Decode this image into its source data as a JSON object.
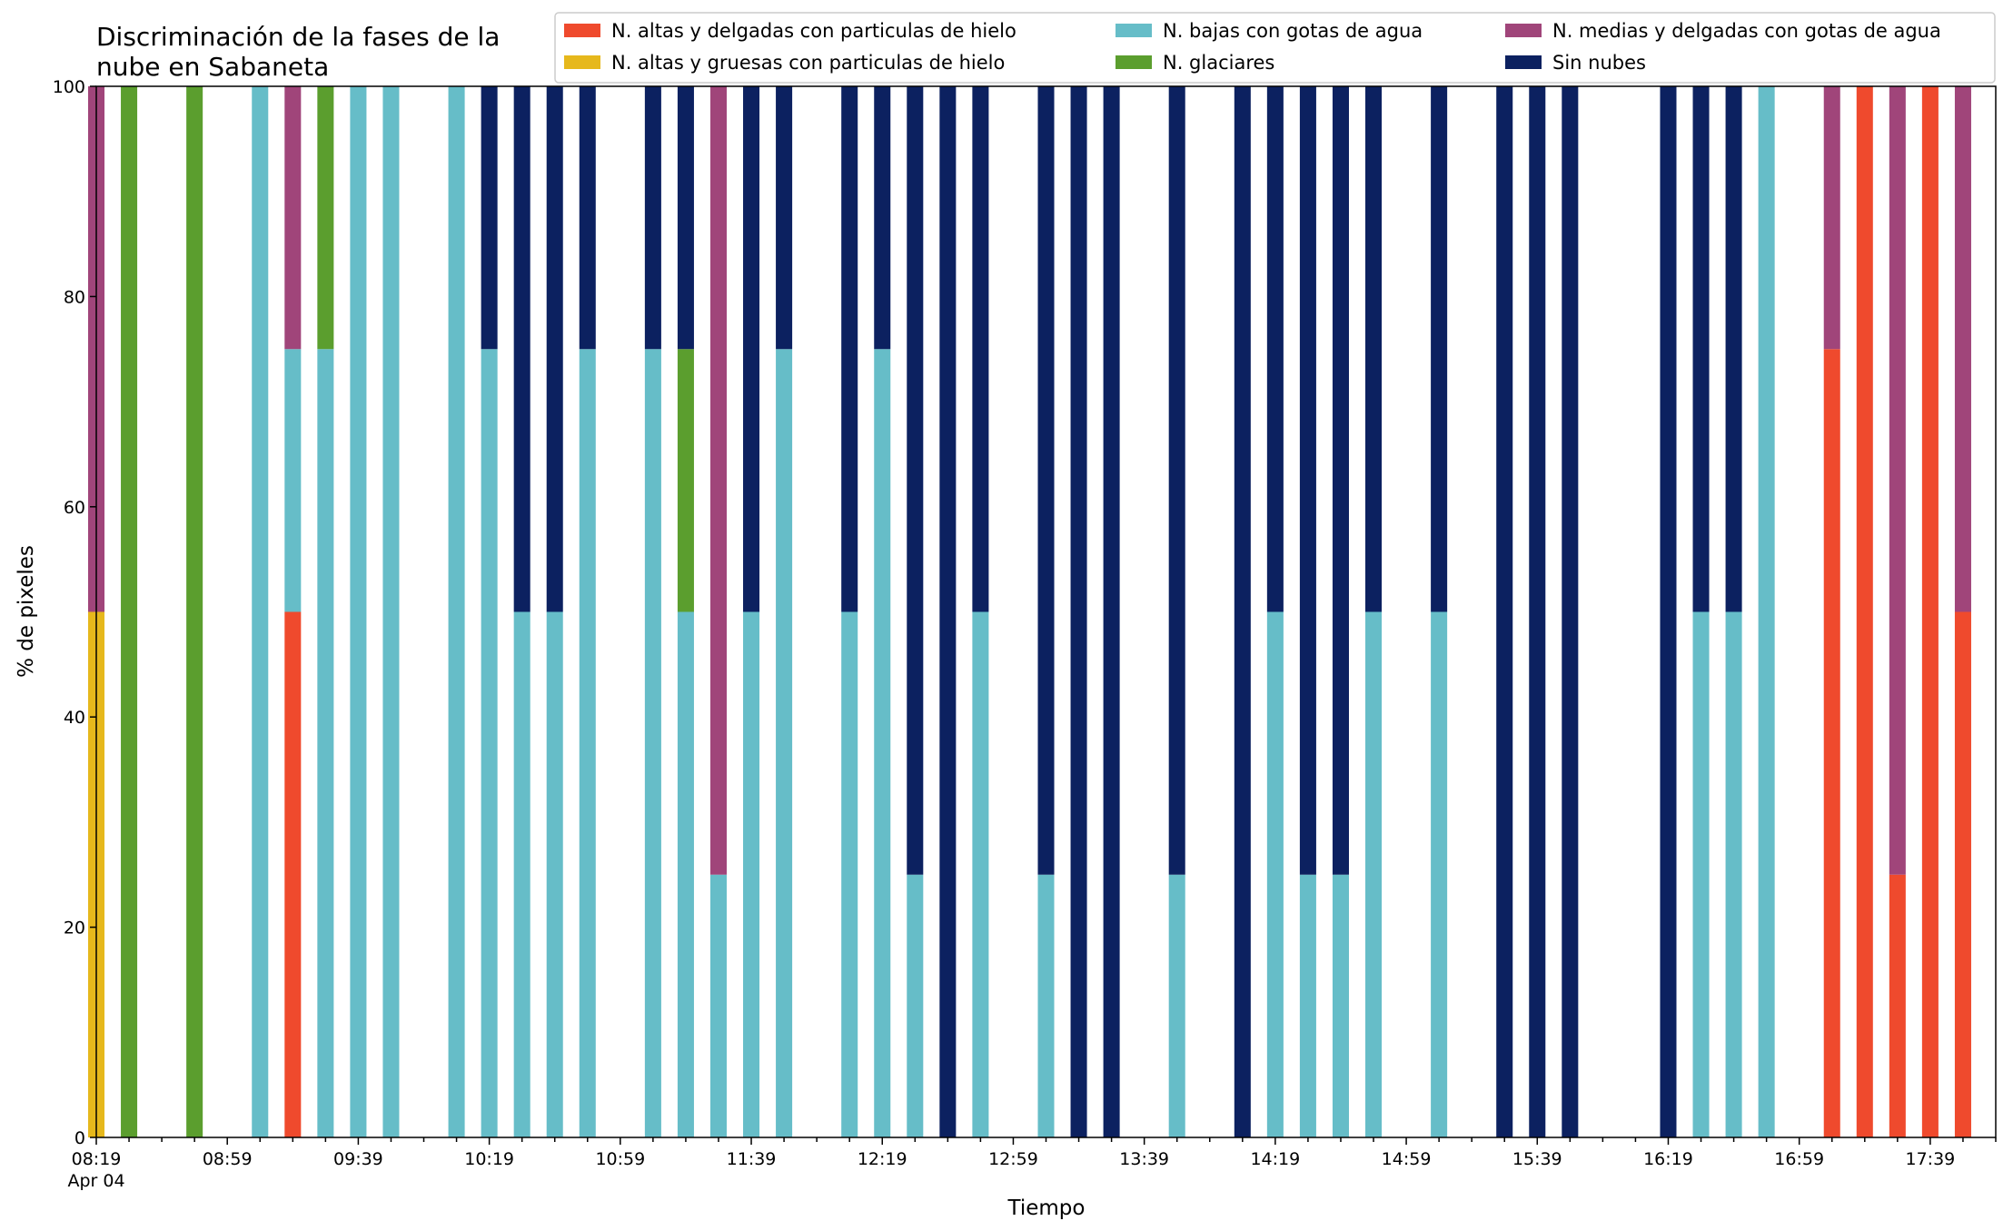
{
  "chart_data": {
    "type": "bar",
    "stacked": true,
    "title_lines": [
      "Discriminación de la fases de la",
      "nube en Sabaneta"
    ],
    "xlabel": "Tiempo",
    "ylabel": "% de pixeles",
    "ylim": [
      0,
      100
    ],
    "yticks": [
      0,
      20,
      40,
      60,
      80,
      100
    ],
    "x_tick_labels": [
      "08:19",
      "08:59",
      "09:39",
      "10:19",
      "10:59",
      "11:39",
      "12:19",
      "12:59",
      "13:39",
      "14:19",
      "14:59",
      "15:39",
      "16:19",
      "16:59",
      "17:39"
    ],
    "x_date_label": "Apr 04",
    "x_unit_minutes": 10,
    "minor_tick_every_minutes": 10,
    "major_tick_every_minutes": 40,
    "axis_start_minute": 499,
    "axis_end_minute": 1079,
    "legend_location": "top-right",
    "legend_columns": 3,
    "series": [
      {
        "name": "N. altas y delgadas con particulas de hielo",
        "color": "#ef4a2d"
      },
      {
        "name": "N. altas y gruesas con particulas de hielo",
        "color": "#e6b81c"
      },
      {
        "name": "N. bajas con gotas de agua",
        "color": "#66bdc8"
      },
      {
        "name": "N. glaciares",
        "color": "#5b9e2e"
      },
      {
        "name": "N. medias y delgadas con gotas de agua",
        "color": "#a0457a"
      },
      {
        "name": "Sin nubes",
        "color": "#0c2160"
      }
    ],
    "bars": [
      {
        "time": "08:19",
        "values": [
          0,
          50,
          0,
          0,
          50,
          0
        ]
      },
      {
        "time": "08:29",
        "values": [
          0,
          0,
          0,
          100,
          0,
          0
        ]
      },
      {
        "time": "08:49",
        "values": [
          0,
          0,
          0,
          100,
          0,
          0
        ]
      },
      {
        "time": "09:09",
        "values": [
          0,
          0,
          100,
          0,
          0,
          0
        ]
      },
      {
        "time": "09:19",
        "values": [
          50,
          0,
          25,
          0,
          25,
          0
        ]
      },
      {
        "time": "09:29",
        "values": [
          0,
          0,
          75,
          25,
          0,
          0
        ]
      },
      {
        "time": "09:39",
        "values": [
          0,
          0,
          100,
          0,
          0,
          0
        ]
      },
      {
        "time": "09:49",
        "values": [
          0,
          0,
          100,
          0,
          0,
          0
        ]
      },
      {
        "time": "10:09",
        "values": [
          0,
          0,
          100,
          0,
          0,
          0
        ]
      },
      {
        "time": "10:19",
        "values": [
          0,
          0,
          75,
          0,
          0,
          25
        ]
      },
      {
        "time": "10:29",
        "values": [
          0,
          0,
          50,
          0,
          0,
          50
        ]
      },
      {
        "time": "10:39",
        "values": [
          0,
          0,
          50,
          0,
          0,
          50
        ]
      },
      {
        "time": "10:49",
        "values": [
          0,
          0,
          75,
          0,
          0,
          25
        ]
      },
      {
        "time": "11:09",
        "values": [
          0,
          0,
          75,
          0,
          0,
          25
        ]
      },
      {
        "time": "11:19",
        "values": [
          0,
          0,
          50,
          25,
          0,
          25
        ]
      },
      {
        "time": "11:29",
        "values": [
          0,
          0,
          25,
          0,
          75,
          0
        ]
      },
      {
        "time": "11:39",
        "values": [
          0,
          0,
          50,
          0,
          0,
          50
        ]
      },
      {
        "time": "11:49",
        "values": [
          0,
          0,
          75,
          0,
          0,
          25
        ]
      },
      {
        "time": "12:09",
        "values": [
          0,
          0,
          50,
          0,
          0,
          50
        ]
      },
      {
        "time": "12:19",
        "values": [
          0,
          0,
          75,
          0,
          0,
          25
        ]
      },
      {
        "time": "12:29",
        "values": [
          0,
          0,
          25,
          0,
          0,
          75
        ]
      },
      {
        "time": "12:39",
        "values": [
          0,
          0,
          0,
          0,
          0,
          100
        ]
      },
      {
        "time": "12:49",
        "values": [
          0,
          0,
          50,
          0,
          0,
          50
        ]
      },
      {
        "time": "13:09",
        "values": [
          0,
          0,
          25,
          0,
          0,
          75
        ]
      },
      {
        "time": "13:19",
        "values": [
          0,
          0,
          0,
          0,
          0,
          100
        ]
      },
      {
        "time": "13:29",
        "values": [
          0,
          0,
          0,
          0,
          0,
          100
        ]
      },
      {
        "time": "13:49",
        "values": [
          0,
          0,
          25,
          0,
          0,
          75
        ]
      },
      {
        "time": "14:09",
        "values": [
          0,
          0,
          0,
          0,
          0,
          100
        ]
      },
      {
        "time": "14:19",
        "values": [
          0,
          0,
          50,
          0,
          0,
          50
        ]
      },
      {
        "time": "14:29",
        "values": [
          0,
          0,
          25,
          0,
          0,
          75
        ]
      },
      {
        "time": "14:39",
        "values": [
          0,
          0,
          25,
          0,
          0,
          75
        ]
      },
      {
        "time": "14:49",
        "values": [
          0,
          0,
          50,
          0,
          0,
          50
        ]
      },
      {
        "time": "15:09",
        "values": [
          0,
          0,
          50,
          0,
          0,
          50
        ]
      },
      {
        "time": "15:29",
        "values": [
          0,
          0,
          0,
          0,
          0,
          100
        ]
      },
      {
        "time": "15:39",
        "values": [
          0,
          0,
          0,
          0,
          0,
          100
        ]
      },
      {
        "time": "15:49",
        "values": [
          0,
          0,
          0,
          0,
          0,
          100
        ]
      },
      {
        "time": "16:19",
        "values": [
          0,
          0,
          0,
          0,
          0,
          100
        ]
      },
      {
        "time": "16:29",
        "values": [
          0,
          0,
          50,
          0,
          0,
          50
        ]
      },
      {
        "time": "16:39",
        "values": [
          0,
          0,
          50,
          0,
          0,
          50
        ]
      },
      {
        "time": "16:49",
        "values": [
          0,
          0,
          100,
          0,
          0,
          0
        ]
      },
      {
        "time": "17:09",
        "values": [
          75,
          0,
          0,
          0,
          25,
          0
        ]
      },
      {
        "time": "17:19",
        "values": [
          100,
          0,
          0,
          0,
          0,
          0
        ]
      },
      {
        "time": "17:29",
        "values": [
          25,
          0,
          0,
          0,
          75,
          0
        ]
      },
      {
        "time": "17:39",
        "values": [
          100,
          0,
          0,
          0,
          0,
          0
        ]
      },
      {
        "time": "17:49",
        "values": [
          50,
          0,
          0,
          0,
          50,
          0
        ]
      }
    ]
  }
}
